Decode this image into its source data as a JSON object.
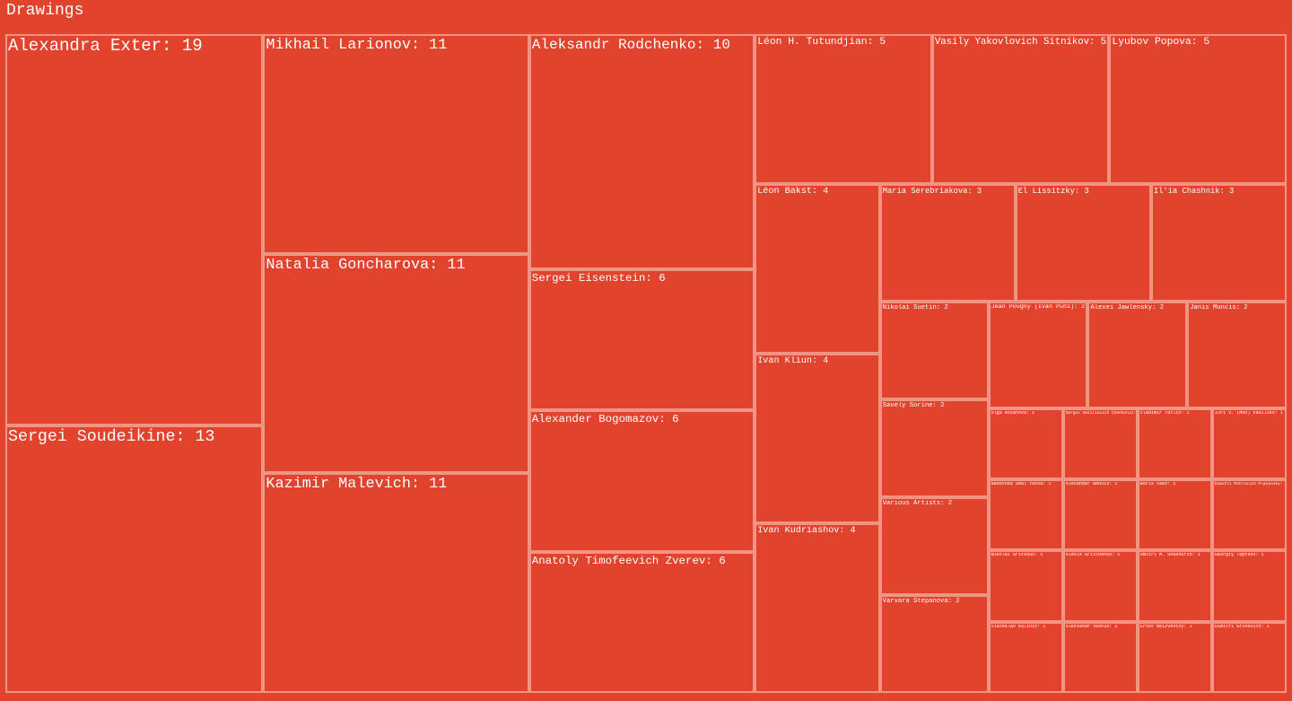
{
  "chart_data": {
    "type": "treemap",
    "title": "Drawings",
    "label_format": "name: value",
    "colors": {
      "fill": "#e2432d",
      "border": "#f29484",
      "text": "#ffffff"
    },
    "items": [
      {
        "name": "Alexandra Exter",
        "value": 19
      },
      {
        "name": "Sergei Soudeikine",
        "value": 13
      },
      {
        "name": "Mikhail Larionov",
        "value": 11
      },
      {
        "name": "Natalia Goncharova",
        "value": 11
      },
      {
        "name": "Kazimir Malevich",
        "value": 11
      },
      {
        "name": "Aleksandr Rodchenko",
        "value": 10
      },
      {
        "name": "Sergei Eisenstein",
        "value": 6
      },
      {
        "name": "Alexander Bogomazov",
        "value": 6
      },
      {
        "name": "Anatoly Timofeevich Zverev",
        "value": 6
      },
      {
        "name": "Léon H. Tutundjian",
        "value": 5
      },
      {
        "name": "Vasily Yakovlovich Sitnikov",
        "value": 5
      },
      {
        "name": "Lyubov Popova",
        "value": 5
      },
      {
        "name": "Léon Bakst",
        "value": 4
      },
      {
        "name": "Ivan Kliun",
        "value": 4
      },
      {
        "name": "Ivan Kudriashov",
        "value": 4
      },
      {
        "name": "Maria Serebriakova",
        "value": 3
      },
      {
        "name": "El Lissitzky",
        "value": 3
      },
      {
        "name": "Il'ia Chashnik",
        "value": 3
      },
      {
        "name": "Nikolai Suetin",
        "value": 2
      },
      {
        "name": "Savely Sorine",
        "value": 2
      },
      {
        "name": "Various Artists",
        "value": 2
      },
      {
        "name": "Varvara Stepanova",
        "value": 2
      },
      {
        "name": "Jean Pougny (Ivan Puni)",
        "value": 2
      },
      {
        "name": "Alexei Jawlensky",
        "value": 2
      },
      {
        "name": "Janis Muncis",
        "value": 2
      },
      {
        "name": "Olga Rozanova",
        "value": 1
      },
      {
        "name": "Sergei Vasilievich Chekhonin",
        "value": 1
      },
      {
        "name": "Vladimir Tatlin",
        "value": 1
      },
      {
        "name": "Iuri V. (Mon) Vasiliev",
        "value": 1
      },
      {
        "name": "Nadezhda Udal'tsova",
        "value": 1
      },
      {
        "name": "Alexander Benois",
        "value": 1
      },
      {
        "name": "Boris Vako",
        "value": 1
      },
      {
        "name": "Dimitri Petrovich Plavinsky",
        "value": 1
      },
      {
        "name": "Nikolai Gritsouk",
        "value": 1
      },
      {
        "name": "Alexis Gritchenko",
        "value": 1
      },
      {
        "name": "Dmitri M. Shashurin",
        "value": 1
      },
      {
        "name": "Georgiy Teptsov",
        "value": 1
      },
      {
        "name": "Viaceslav Kalinin",
        "value": 1
      },
      {
        "name": "Aleksandr Vesnin",
        "value": 1
      },
      {
        "name": "Ernst Neizvestny",
        "value": 1
      },
      {
        "name": "Dimitri Grinevich",
        "value": 1
      }
    ]
  }
}
